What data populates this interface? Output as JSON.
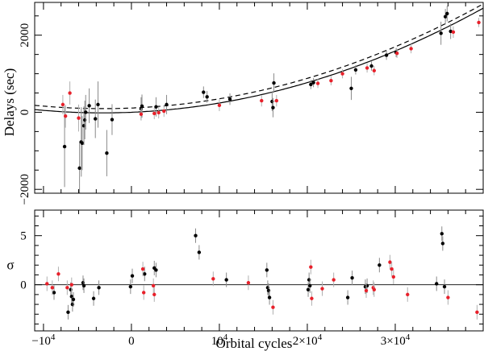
{
  "chart_data": [
    {
      "type": "scatter",
      "panel": "top",
      "ylabel": "Delays (sec)",
      "xlim": [
        -11000,
        40000
      ],
      "ylim": [
        -2100,
        2850
      ],
      "ytick_values": [
        -2000,
        0,
        2000
      ],
      "ytick_labels": [
        "−2000",
        "0",
        "2000"
      ],
      "ytick_rotation": "vertical",
      "series": [
        {
          "name": "black points",
          "color": "#000000",
          "points": [
            {
              "x": -7600,
              "y": -890,
              "e": 1050
            },
            {
              "x": -5900,
              "y": -1450,
              "e": 700
            },
            {
              "x": -5700,
              "y": -770,
              "e": 900
            },
            {
              "x": -5600,
              "y": -800,
              "e": 700
            },
            {
              "x": -5400,
              "y": -350,
              "e": 500
            },
            {
              "x": -5300,
              "y": -200,
              "e": 500
            },
            {
              "x": -5200,
              "y": 0,
              "e": 450
            },
            {
              "x": -4800,
              "y": 170,
              "e": 450
            },
            {
              "x": -4100,
              "y": -170,
              "e": 500
            },
            {
              "x": -3800,
              "y": 200,
              "e": 600
            },
            {
              "x": -2800,
              "y": -1060,
              "e": 600
            },
            {
              "x": -2200,
              "y": -190,
              "e": 400
            },
            {
              "x": 1100,
              "y": 90,
              "e": 300
            },
            {
              "x": 1200,
              "y": 160,
              "e": 300
            },
            {
              "x": 2800,
              "y": 140,
              "e": 250
            },
            {
              "x": 4000,
              "y": 200,
              "e": 250
            },
            {
              "x": 8200,
              "y": 520,
              "e": 150
            },
            {
              "x": 8600,
              "y": 400,
              "e": 150
            },
            {
              "x": 11200,
              "y": 340,
              "e": 150
            },
            {
              "x": 16000,
              "y": 280,
              "e": 250
            },
            {
              "x": 16100,
              "y": 120,
              "e": 250
            },
            {
              "x": 16200,
              "y": 760,
              "e": 250
            },
            {
              "x": 20400,
              "y": 720,
              "e": 120
            },
            {
              "x": 20700,
              "y": 770,
              "e": 120
            },
            {
              "x": 25000,
              "y": 620,
              "e": 300
            },
            {
              "x": 25500,
              "y": 1100,
              "e": 120
            },
            {
              "x": 27300,
              "y": 1200,
              "e": 120
            },
            {
              "x": 29000,
              "y": 1480,
              "e": 120
            },
            {
              "x": 30100,
              "y": 1550,
              "e": 120
            },
            {
              "x": 35200,
              "y": 2050,
              "e": 300
            },
            {
              "x": 35700,
              "y": 2480,
              "e": 200
            },
            {
              "x": 35900,
              "y": 2560,
              "e": 200
            },
            {
              "x": 36300,
              "y": 2100,
              "e": 200
            }
          ]
        },
        {
          "name": "red points",
          "color": "#e8202a",
          "points": [
            {
              "x": -7800,
              "y": 200,
              "e": 250
            },
            {
              "x": -7000,
              "y": 500,
              "e": 300
            },
            {
              "x": -6000,
              "y": -150,
              "e": 350
            },
            {
              "x": -7500,
              "y": -100,
              "e": 300
            },
            {
              "x": 1100,
              "y": -50,
              "e": 150
            },
            {
              "x": 2600,
              "y": -30,
              "e": 150
            },
            {
              "x": 3100,
              "y": -10,
              "e": 150
            },
            {
              "x": 3700,
              "y": 30,
              "e": 150
            },
            {
              "x": 10000,
              "y": 180,
              "e": 150
            },
            {
              "x": 14800,
              "y": 300,
              "e": 150
            },
            {
              "x": 16500,
              "y": 300,
              "e": 150
            },
            {
              "x": 21200,
              "y": 750,
              "e": 120
            },
            {
              "x": 22700,
              "y": 820,
              "e": 120
            },
            {
              "x": 24000,
              "y": 1000,
              "e": 120
            },
            {
              "x": 26800,
              "y": 1150,
              "e": 120
            },
            {
              "x": 27600,
              "y": 1080,
              "e": 120
            },
            {
              "x": 30200,
              "y": 1530,
              "e": 120
            },
            {
              "x": 31800,
              "y": 1650,
              "e": 120
            },
            {
              "x": 36600,
              "y": 2080,
              "e": 150
            },
            {
              "x": 39500,
              "y": 2330,
              "e": 120
            }
          ]
        }
      ],
      "models": [
        {
          "name": "solid fit",
          "style": "solid",
          "c0": 0,
          "c1": 0.0095,
          "c2": 1.45e-06
        },
        {
          "name": "dashed fit",
          "style": "dashed",
          "c0": 110,
          "c1": 0.0095,
          "c2": 1.45e-06
        }
      ]
    },
    {
      "type": "scatter",
      "panel": "bottom",
      "xlabel": "Orbital cycles",
      "ylabel": "σ",
      "xlim": [
        -11000,
        40000
      ],
      "ylim": [
        -4.7,
        7.6
      ],
      "ytick_values": [
        0,
        5
      ],
      "ytick_labels": [
        "0",
        "5"
      ],
      "xtick_values": [
        -10000,
        0,
        10000,
        20000,
        30000
      ],
      "xtick_labels": [
        {
          "base": "−10",
          "exp": "4"
        },
        {
          "base": "0",
          "exp": ""
        },
        {
          "base": "10",
          "exp": "4"
        },
        {
          "base": "2×10",
          "exp": "4"
        },
        {
          "base": "3×10",
          "exp": "4"
        }
      ],
      "reference_line": 0,
      "series": [
        {
          "name": "black residuals",
          "color": "#000000",
          "points": [
            {
              "x": -8800,
              "y": -0.8
            },
            {
              "x": -7200,
              "y": -2.8
            },
            {
              "x": -6900,
              "y": -0.5
            },
            {
              "x": -6800,
              "y": -1.2
            },
            {
              "x": -6700,
              "y": -2.0
            },
            {
              "x": -6600,
              "y": -1.5
            },
            {
              "x": -5500,
              "y": 0.2
            },
            {
              "x": -5400,
              "y": -0.1
            },
            {
              "x": -4300,
              "y": -1.4
            },
            {
              "x": -3700,
              "y": -0.3
            },
            {
              "x": -100,
              "y": -0.2
            },
            {
              "x": 100,
              "y": 0.9
            },
            {
              "x": 1500,
              "y": 1.1
            },
            {
              "x": 2600,
              "y": 1.7
            },
            {
              "x": 2800,
              "y": 1.5
            },
            {
              "x": 7300,
              "y": 5.0
            },
            {
              "x": 7700,
              "y": 3.3
            },
            {
              "x": 10800,
              "y": 0.5
            },
            {
              "x": 15400,
              "y": 1.5
            },
            {
              "x": 15500,
              "y": -0.3
            },
            {
              "x": 15600,
              "y": -0.6
            },
            {
              "x": 15700,
              "y": -1.3
            },
            {
              "x": 20100,
              "y": -0.5
            },
            {
              "x": 20200,
              "y": 0.5
            },
            {
              "x": 20300,
              "y": -0.1
            },
            {
              "x": 24600,
              "y": -1.3
            },
            {
              "x": 25100,
              "y": 0.7
            },
            {
              "x": 26600,
              "y": -0.2
            },
            {
              "x": 26800,
              "y": -0.1
            },
            {
              "x": 28200,
              "y": 2.0
            },
            {
              "x": 34700,
              "y": 0.1
            },
            {
              "x": 35300,
              "y": 5.2
            },
            {
              "x": 35400,
              "y": 4.2
            },
            {
              "x": 35600,
              "y": -0.2
            }
          ]
        },
        {
          "name": "red residuals",
          "color": "#e8202a",
          "points": [
            {
              "x": -9600,
              "y": 0.1
            },
            {
              "x": -9000,
              "y": -0.3
            },
            {
              "x": -8300,
              "y": 1.1
            },
            {
              "x": -7300,
              "y": -0.3
            },
            {
              "x": -6800,
              "y": 0.0
            },
            {
              "x": 1300,
              "y": 1.6
            },
            {
              "x": 1400,
              "y": -0.8
            },
            {
              "x": 2500,
              "y": -0.1
            },
            {
              "x": 2600,
              "y": -1.0
            },
            {
              "x": 9300,
              "y": 0.6
            },
            {
              "x": 13300,
              "y": 0.2
            },
            {
              "x": 16100,
              "y": -2.3
            },
            {
              "x": 20400,
              "y": 1.8
            },
            {
              "x": 20500,
              "y": -1.4
            },
            {
              "x": 21700,
              "y": -0.4
            },
            {
              "x": 23000,
              "y": 0.5
            },
            {
              "x": 26700,
              "y": -0.6
            },
            {
              "x": 27500,
              "y": -0.3
            },
            {
              "x": 27600,
              "y": -0.5
            },
            {
              "x": 29400,
              "y": 2.3
            },
            {
              "x": 29600,
              "y": 1.6
            },
            {
              "x": 29800,
              "y": 0.8
            },
            {
              "x": 31400,
              "y": -1.0
            },
            {
              "x": 36000,
              "y": -1.3
            },
            {
              "x": 39300,
              "y": -2.8
            }
          ]
        }
      ]
    }
  ]
}
